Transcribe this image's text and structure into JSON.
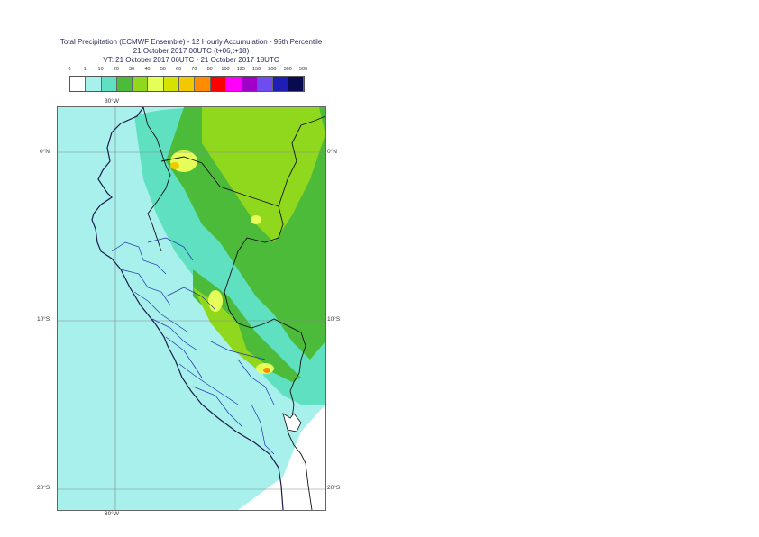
{
  "title": {
    "line1": "Total Precipitation (ECMWF Ensemble) - 12 Hourly Accumulation - 95th Percentile",
    "line2": "21 October 2017 00UTC (t+06,t+18)",
    "line3": "VT: 21 October 2017 06UTC - 21 October 2017 18UTC"
  },
  "legend": {
    "ticks": [
      "0",
      "1",
      "10",
      "20",
      "30",
      "40",
      "50",
      "60",
      "70",
      "80",
      "100",
      "125",
      "150",
      "200",
      "300",
      "500"
    ],
    "colors": [
      "#ffffff",
      "#a8f0ec",
      "#5fe0c0",
      "#4cbb3a",
      "#8fd81e",
      "#e6ff58",
      "#d4e400",
      "#f2c800",
      "#ff8c00",
      "#ff0000",
      "#ff00ff",
      "#a000c8",
      "#6e4cf0",
      "#1e1eb4",
      "#0a0a50"
    ]
  },
  "axes": {
    "top_lon": "80°W",
    "bottom_lon": "80°W",
    "lat_labels": [
      "0°N",
      "10°S",
      "20°S"
    ]
  }
}
